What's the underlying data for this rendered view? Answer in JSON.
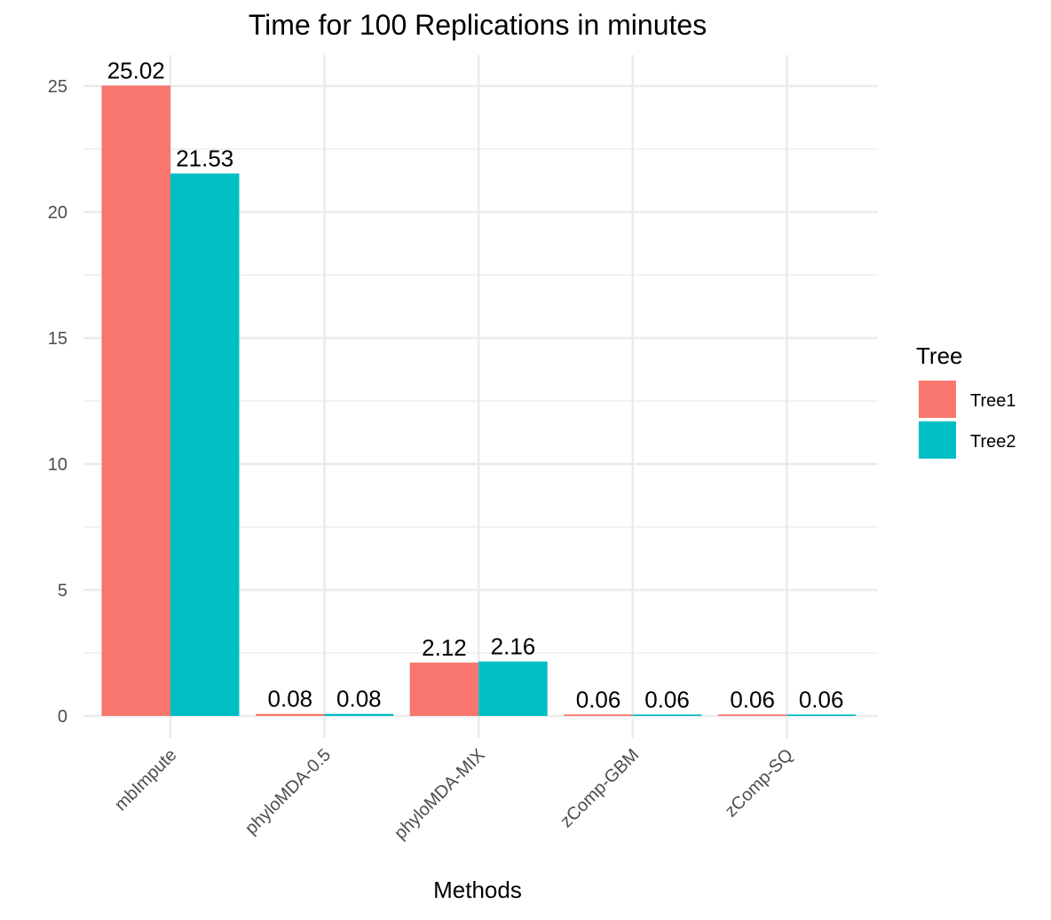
{
  "chart_data": {
    "type": "bar",
    "title": "Time for 100 Replications in minutes",
    "xlabel": "Methods",
    "ylabel": "",
    "categories": [
      "mbImpute",
      "phyloMDA-0.5",
      "phyloMDA-MIX",
      "zComp-GBM",
      "zComp-SQ"
    ],
    "series": [
      {
        "name": "Tree1",
        "color": "#F8766D",
        "values": [
          25.02,
          0.08,
          2.12,
          0.06,
          0.06
        ],
        "labels": [
          "25.02",
          "0.08",
          "2.12",
          "0.06",
          "0.06"
        ]
      },
      {
        "name": "Tree2",
        "color": "#00BFC4",
        "values": [
          21.53,
          0.08,
          2.16,
          0.06,
          0.06
        ],
        "labels": [
          "21.53",
          "0.08",
          "2.16",
          "0.06",
          "0.06"
        ]
      }
    ],
    "ylim": [
      0,
      26
    ],
    "yticks": [
      0,
      5,
      10,
      15,
      20,
      25
    ],
    "grid": true,
    "legend": {
      "title": "Tree",
      "placement": "right"
    }
  }
}
